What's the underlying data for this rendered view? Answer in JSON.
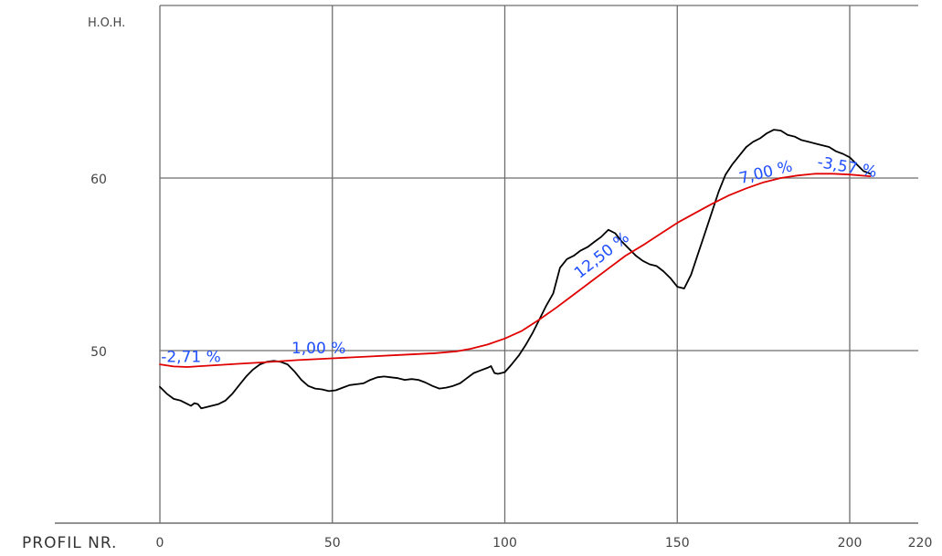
{
  "chart_data": {
    "type": "line",
    "xlabel": "PROFIL NR.",
    "ylabel": "H.O.H.",
    "xlim": [
      0,
      220
    ],
    "ylim": [
      40,
      70
    ],
    "x_ticks": [
      0,
      50,
      100,
      150,
      200,
      220
    ],
    "y_ticks": [
      50,
      60
    ],
    "x_grid": [
      0,
      50,
      100,
      150,
      200
    ],
    "y_grid": [
      40,
      50,
      60,
      70
    ],
    "grid": true,
    "series": [
      {
        "key": "terrain",
        "color": "#000000",
        "points": [
          [
            0,
            47.9
          ],
          [
            2,
            47.5
          ],
          [
            4,
            47.2
          ],
          [
            6,
            47.1
          ],
          [
            8,
            46.9
          ],
          [
            9,
            46.8
          ],
          [
            10,
            46.95
          ],
          [
            11,
            46.9
          ],
          [
            12,
            46.65
          ],
          [
            13,
            46.7
          ],
          [
            15,
            46.8
          ],
          [
            17,
            46.9
          ],
          [
            19,
            47.1
          ],
          [
            21,
            47.5
          ],
          [
            23,
            48.0
          ],
          [
            25,
            48.5
          ],
          [
            27,
            48.9
          ],
          [
            29,
            49.2
          ],
          [
            31,
            49.35
          ],
          [
            33,
            49.4
          ],
          [
            35,
            49.35
          ],
          [
            37,
            49.2
          ],
          [
            39,
            48.8
          ],
          [
            41,
            48.3
          ],
          [
            43,
            47.95
          ],
          [
            45,
            47.8
          ],
          [
            47,
            47.75
          ],
          [
            49,
            47.65
          ],
          [
            51,
            47.7
          ],
          [
            53,
            47.85
          ],
          [
            55,
            48.0
          ],
          [
            57,
            48.05
          ],
          [
            59,
            48.1
          ],
          [
            61,
            48.3
          ],
          [
            63,
            48.45
          ],
          [
            65,
            48.5
          ],
          [
            67,
            48.45
          ],
          [
            69,
            48.4
          ],
          [
            71,
            48.3
          ],
          [
            73,
            48.35
          ],
          [
            75,
            48.3
          ],
          [
            77,
            48.15
          ],
          [
            79,
            47.95
          ],
          [
            81,
            47.8
          ],
          [
            83,
            47.85
          ],
          [
            85,
            47.95
          ],
          [
            87,
            48.1
          ],
          [
            89,
            48.4
          ],
          [
            91,
            48.7
          ],
          [
            93,
            48.85
          ],
          [
            95,
            49.0
          ],
          [
            96,
            49.1
          ],
          [
            97,
            48.7
          ],
          [
            98,
            48.65
          ],
          [
            99,
            48.7
          ],
          [
            100,
            48.75
          ],
          [
            102,
            49.2
          ],
          [
            104,
            49.7
          ],
          [
            106,
            50.3
          ],
          [
            108,
            51.0
          ],
          [
            110,
            51.8
          ],
          [
            112,
            52.6
          ],
          [
            114,
            53.3
          ],
          [
            116,
            54.8
          ],
          [
            118,
            55.3
          ],
          [
            120,
            55.5
          ],
          [
            122,
            55.8
          ],
          [
            124,
            56.0
          ],
          [
            126,
            56.3
          ],
          [
            128,
            56.6
          ],
          [
            130,
            57.0
          ],
          [
            132,
            56.8
          ],
          [
            134,
            56.3
          ],
          [
            136,
            55.9
          ],
          [
            138,
            55.5
          ],
          [
            140,
            55.2
          ],
          [
            142,
            55.0
          ],
          [
            144,
            54.9
          ],
          [
            146,
            54.6
          ],
          [
            148,
            54.2
          ],
          [
            150,
            53.7
          ],
          [
            152,
            53.6
          ],
          [
            154,
            54.4
          ],
          [
            156,
            55.6
          ],
          [
            158,
            56.8
          ],
          [
            160,
            58.0
          ],
          [
            162,
            59.2
          ],
          [
            164,
            60.2
          ],
          [
            166,
            60.8
          ],
          [
            168,
            61.3
          ],
          [
            170,
            61.8
          ],
          [
            172,
            62.1
          ],
          [
            174,
            62.3
          ],
          [
            176,
            62.6
          ],
          [
            178,
            62.8
          ],
          [
            180,
            62.75
          ],
          [
            182,
            62.5
          ],
          [
            184,
            62.4
          ],
          [
            186,
            62.2
          ],
          [
            188,
            62.1
          ],
          [
            190,
            62.0
          ],
          [
            192,
            61.9
          ],
          [
            194,
            61.8
          ],
          [
            196,
            61.55
          ],
          [
            198,
            61.4
          ],
          [
            200,
            61.2
          ],
          [
            202,
            60.8
          ],
          [
            204,
            60.4
          ],
          [
            206,
            60.25
          ]
        ]
      },
      {
        "key": "grade-line",
        "color": "#e00000",
        "points": [
          [
            0,
            49.2
          ],
          [
            4,
            49.08
          ],
          [
            8,
            49.05
          ],
          [
            12,
            49.1
          ],
          [
            20,
            49.2
          ],
          [
            30,
            49.32
          ],
          [
            40,
            49.45
          ],
          [
            50,
            49.55
          ],
          [
            60,
            49.65
          ],
          [
            70,
            49.75
          ],
          [
            80,
            49.85
          ],
          [
            86,
            49.95
          ],
          [
            90,
            50.1
          ],
          [
            95,
            50.35
          ],
          [
            100,
            50.7
          ],
          [
            105,
            51.15
          ],
          [
            110,
            51.8
          ],
          [
            115,
            52.5
          ],
          [
            120,
            53.25
          ],
          [
            125,
            54.0
          ],
          [
            130,
            54.75
          ],
          [
            135,
            55.5
          ],
          [
            140,
            56.1
          ],
          [
            145,
            56.75
          ],
          [
            150,
            57.4
          ],
          [
            155,
            57.95
          ],
          [
            160,
            58.5
          ],
          [
            165,
            59.0
          ],
          [
            170,
            59.4
          ],
          [
            175,
            59.75
          ],
          [
            180,
            60.0
          ],
          [
            185,
            60.15
          ],
          [
            190,
            60.25
          ],
          [
            195,
            60.25
          ],
          [
            200,
            60.2
          ],
          [
            206,
            60.1
          ]
        ]
      }
    ],
    "annotations": [
      {
        "text": "-2,71 %",
        "x": 9,
        "y": 49.35,
        "rotate": 0
      },
      {
        "text": "1,00 %",
        "x": 46,
        "y": 49.85,
        "rotate": 0
      },
      {
        "text": "12,50 %",
        "x": 129,
        "y": 55.3,
        "rotate": -38
      },
      {
        "text": "7,00 %",
        "x": 176,
        "y": 60.05,
        "rotate": -14
      },
      {
        "text": "-3,57 %",
        "x": 199,
        "y": 60.35,
        "rotate": 10
      }
    ]
  }
}
